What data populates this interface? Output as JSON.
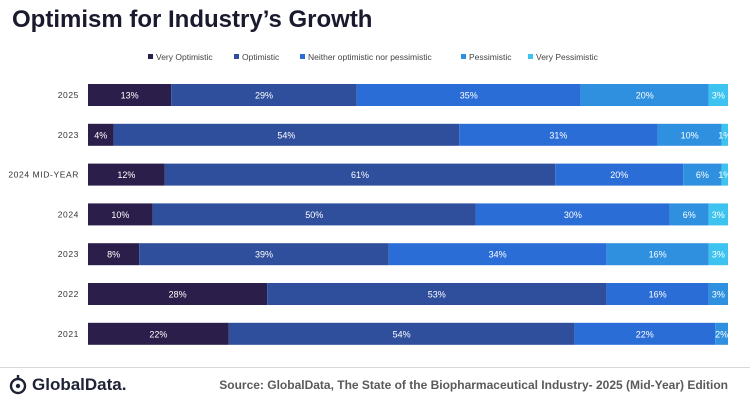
{
  "title": "Optimism for Industry’s Growth",
  "footer": {
    "logo_text": "GlobalData.",
    "source": "Source: GlobalData, The State of the Biopharmaceutical Industry- 2025 (Mid-Year) Edition"
  },
  "colors": {
    "Very Optimistic": "#2b1e4a",
    "Optimistic": "#2f4f9c",
    "Neither optimistic nor pessimistic": "#2b6dd6",
    "Pessimistic": "#2f90e0",
    "Very Pessimistic": "#3cc3ef"
  },
  "chart_data": {
    "type": "bar",
    "orientation": "horizontal",
    "stacked": true,
    "percent": true,
    "title": "Optimism for Industry’s Growth",
    "categories": [
      "2025",
      "2023",
      "2024 MID-YEAR",
      "2024",
      "2023",
      "2022",
      "2021"
    ],
    "series": [
      {
        "name": "Very Optimistic",
        "values": [
          13,
          4,
          12,
          10,
          8,
          28,
          22
        ]
      },
      {
        "name": "Optimistic",
        "values": [
          29,
          54,
          61,
          50,
          39,
          53,
          54
        ]
      },
      {
        "name": "Neither optimistic nor pessimistic",
        "values": [
          35,
          31,
          20,
          30,
          34,
          16,
          22
        ]
      },
      {
        "name": "Pessimistic",
        "values": [
          20,
          10,
          6,
          6,
          16,
          3,
          2
        ]
      },
      {
        "name": "Very Pessimistic",
        "values": [
          3,
          1,
          1,
          3,
          3,
          0,
          0
        ]
      }
    ],
    "xlim": [
      0,
      100
    ],
    "legend": "top",
    "grid": false
  }
}
